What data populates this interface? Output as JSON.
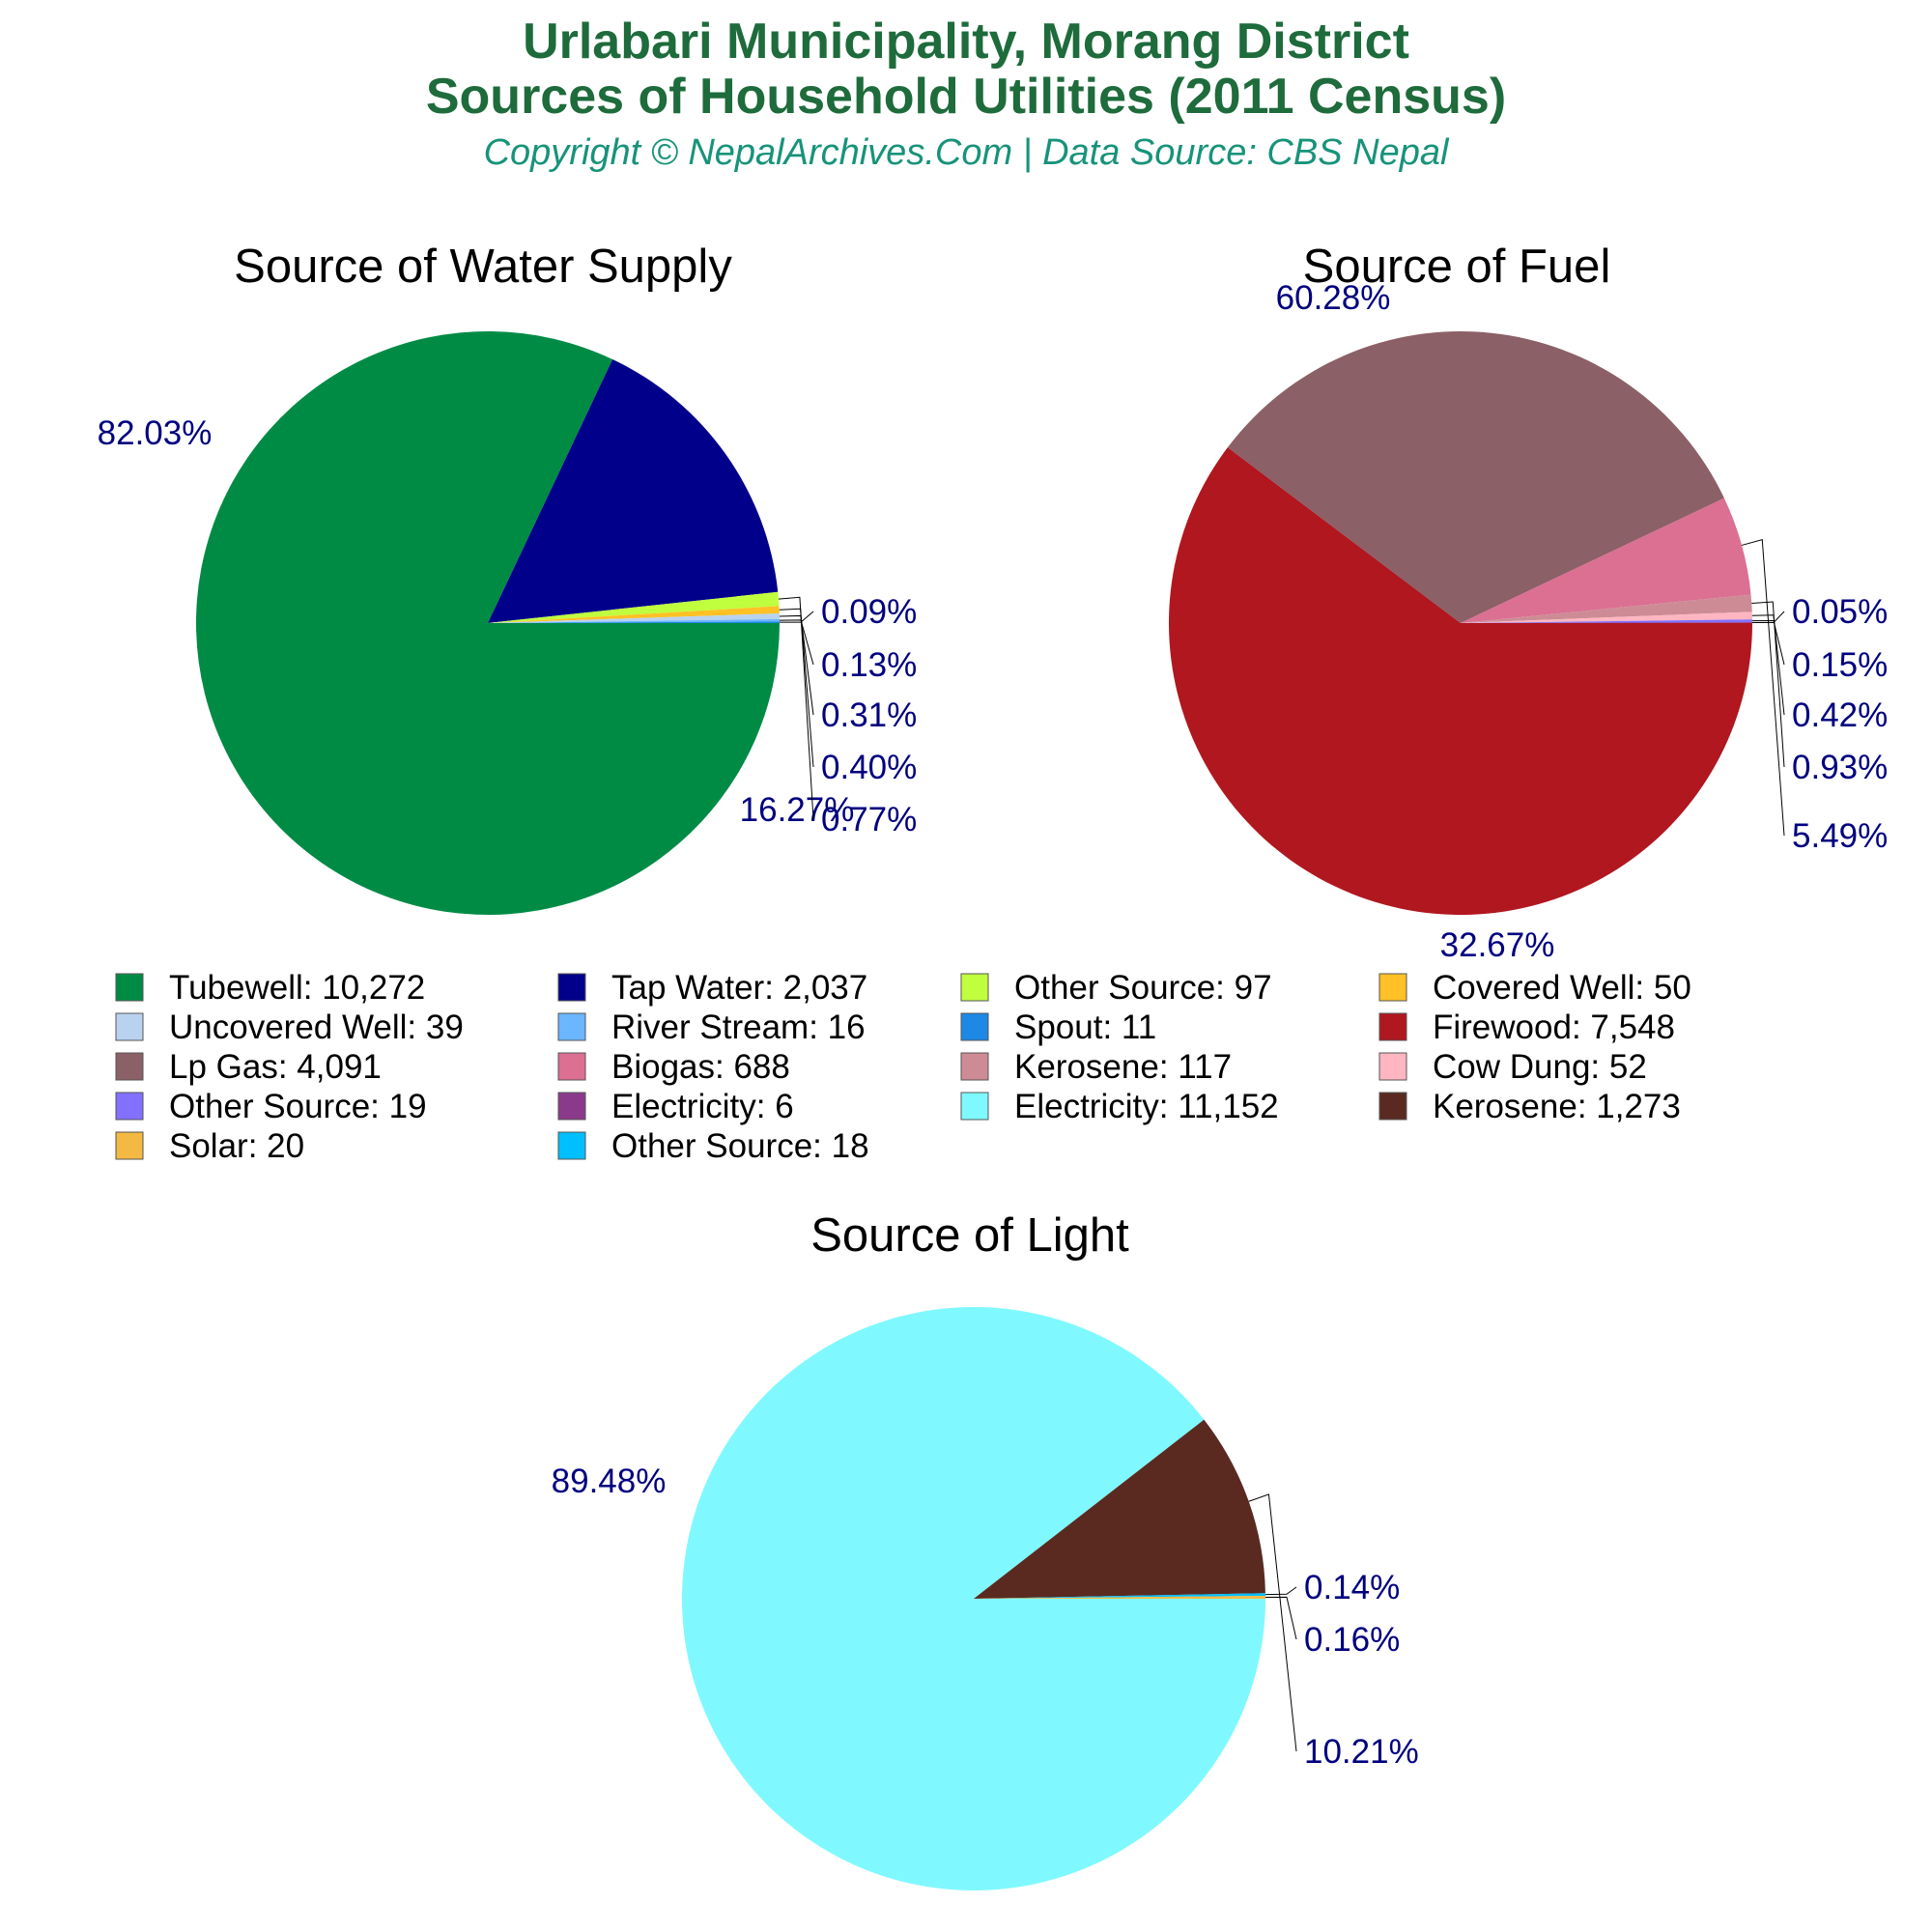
{
  "header": {
    "title_line1": "Urlabari Municipality, Morang District",
    "title_line2": "Sources of Household Utilities (2011 Census)",
    "subtitle": "Copyright © NepalArchives.Com | Data Source: CBS Nepal"
  },
  "chart_data": [
    {
      "type": "pie",
      "title": "Source of Water Supply",
      "slices": [
        {
          "name": "Tubewell",
          "value": 10272,
          "label": "82.03%",
          "color": "#008b45"
        },
        {
          "name": "Tap Water",
          "value": 2037,
          "label": "16.27%",
          "color": "#00008b"
        },
        {
          "name": "Other Source",
          "value": 97,
          "label": "0.77%",
          "color": "#c0ff3e"
        },
        {
          "name": "Covered Well",
          "value": 50,
          "label": "0.40%",
          "color": "#ffc125"
        },
        {
          "name": "Uncovered Well",
          "value": 39,
          "label": "0.31%",
          "color": "#b9d3ee"
        },
        {
          "name": "River Stream",
          "value": 16,
          "label": "0.13%",
          "color": "#6cb6ff"
        },
        {
          "name": "Spout",
          "value": 11,
          "label": "0.09%",
          "color": "#1e88e5"
        }
      ]
    },
    {
      "type": "pie",
      "title": "Source of Fuel",
      "slices": [
        {
          "name": "Firewood",
          "value": 7548,
          "label": "60.28%",
          "color": "#b0171f"
        },
        {
          "name": "Lp Gas",
          "value": 4091,
          "label": "32.67%",
          "color": "#8b6066"
        },
        {
          "name": "Biogas",
          "value": 688,
          "label": "5.49%",
          "color": "#db7093"
        },
        {
          "name": "Kerosene",
          "value": 117,
          "label": "0.93%",
          "color": "#cd8c95"
        },
        {
          "name": "Cow Dung",
          "value": 52,
          "label": "0.42%",
          "color": "#ffb6c1"
        },
        {
          "name": "Other Source",
          "value": 19,
          "label": "0.15%",
          "color": "#8470ff"
        },
        {
          "name": "Electricity",
          "value": 6,
          "label": "0.05%",
          "color": "#8b3a8b"
        }
      ]
    },
    {
      "type": "pie",
      "title": "Source of Light",
      "slices": [
        {
          "name": "Electricity",
          "value": 11152,
          "label": "89.48%",
          "color": "#7ff9ff"
        },
        {
          "name": "Kerosene",
          "value": 1273,
          "label": "10.21%",
          "color": "#5a2a20"
        },
        {
          "name": "Other Source",
          "value": 18,
          "label": "0.14%",
          "color": "#00bfff"
        },
        {
          "name": "Solar",
          "value": 20,
          "label": "0.16%",
          "color": "#f4b942"
        }
      ]
    }
  ],
  "legend": [
    {
      "text": "Tubewell: 10,272",
      "color": "#008b45"
    },
    {
      "text": "Tap Water: 2,037",
      "color": "#00008b"
    },
    {
      "text": "Other Source: 97",
      "color": "#c0ff3e"
    },
    {
      "text": "Covered Well: 50",
      "color": "#ffc125"
    },
    {
      "text": "Uncovered Well: 39",
      "color": "#b9d3ee"
    },
    {
      "text": "River Stream: 16",
      "color": "#6cb6ff"
    },
    {
      "text": "Spout: 11",
      "color": "#1e88e5"
    },
    {
      "text": "Firewood: 7,548",
      "color": "#b0171f"
    },
    {
      "text": "Lp Gas: 4,091",
      "color": "#8b6066"
    },
    {
      "text": "Biogas: 688",
      "color": "#db7093"
    },
    {
      "text": "Kerosene: 117",
      "color": "#cd8c95"
    },
    {
      "text": "Cow Dung: 52",
      "color": "#ffb6c1"
    },
    {
      "text": "Other Source: 19",
      "color": "#8470ff"
    },
    {
      "text": "Electricity: 6",
      "color": "#8b3a8b"
    },
    {
      "text": "Electricity: 11,152",
      "color": "#7ff9ff"
    },
    {
      "text": "Kerosene: 1,273",
      "color": "#5a2a20"
    },
    {
      "text": "Solar: 20",
      "color": "#f4b942"
    },
    {
      "text": "Other Source: 18",
      "color": "#00bfff"
    }
  ]
}
